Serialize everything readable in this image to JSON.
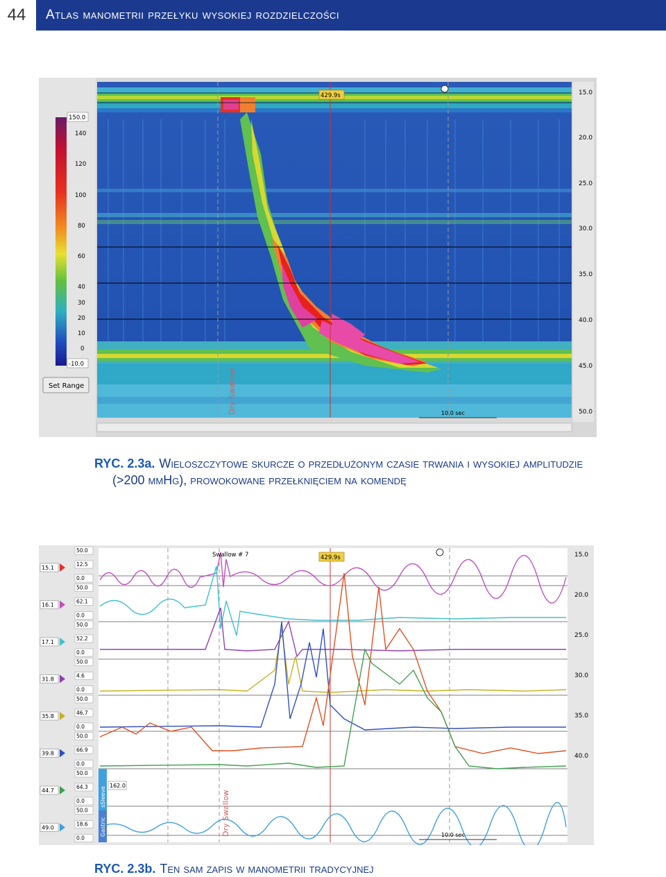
{
  "page": {
    "number": "44",
    "running_title": "Atlas manometrii przełyku wysokiej rozdzielczości"
  },
  "figure_a": {
    "label": "RYC. 2.3a.",
    "caption_line1": "Wieloszczytowe skurcze o przedłużonym czasie trwania i wysokiej amplitudzie",
    "caption_line2": "(>200 mmHg), prowokowane przełknięciem na komendę",
    "time_marker": "429.9s",
    "set_range_button": "Set Range",
    "scale_labels": [
      "150.0",
      "140",
      "120",
      "100",
      "80",
      "60",
      "40",
      "30",
      "20",
      "10",
      "0",
      "-10.0"
    ],
    "depth_labels": [
      "15.0",
      "20.0",
      "25.0",
      "30.0",
      "35.0",
      "40.0",
      "45.0",
      "50.0"
    ],
    "duration_label": "10.0 sec",
    "event_label": "Dry Swallow"
  },
  "figure_b": {
    "label": "RYC. 2.3b.",
    "caption": "Ten sam zapis w manometrii tradycyjnej",
    "time_marker": "429.9s",
    "swallow_marker": "Swallow # 7",
    "channels": [
      {
        "tag": "15.1",
        "top": "50.0",
        "value": "12.5",
        "bottom": "0.0",
        "color": "#e03030"
      },
      {
        "tag": "16.1",
        "top": "50.0",
        "value": "62.1",
        "bottom": "0.0",
        "color": "#c050c0"
      },
      {
        "tag": "17.1",
        "top": "50.0",
        "value": "52.2",
        "bottom": "0.0",
        "color": "#40c0d0"
      },
      {
        "tag": "31.8",
        "top": "50.0",
        "value": "4.6",
        "bottom": "0.0",
        "color": "#9040b0"
      },
      {
        "tag": "35.8",
        "top": "50.0",
        "value": "46.7",
        "bottom": "0.0",
        "color": "#c8b020"
      },
      {
        "tag": "39.8",
        "top": "50.0",
        "value": "66.9",
        "bottom": "0.0",
        "color": "#3050c0"
      },
      {
        "tag": "44.7",
        "top": "50.0",
        "value": "64.3",
        "bottom": "0.0",
        "color": "#40a050"
      },
      {
        "tag": "49.0",
        "top": "50.0",
        "value": "18.6",
        "bottom": "0.0",
        "color": "#40a0e0"
      }
    ],
    "side_labels": [
      "sSleeve",
      "Gastric"
    ],
    "sleeve_value": "162.0",
    "depth_labels": [
      "15.0",
      "20.0",
      "25.0",
      "30.0",
      "35.0",
      "40.0"
    ],
    "duration_label": "10.0 sec",
    "event_label": "Dry Swallow"
  }
}
